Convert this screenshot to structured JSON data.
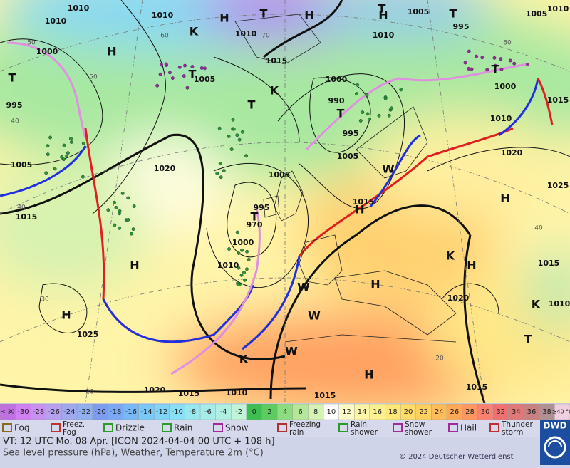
{
  "map": {
    "labels": [
      "1010",
      "1010",
      "1010",
      "1000",
      "995",
      "1005",
      "1015",
      "1020",
      "H",
      "T",
      "H",
      "H",
      "1025",
      "1020",
      "1015",
      "1010",
      "1015",
      "1015",
      "H",
      "T",
      "1010",
      "K",
      "1015",
      "H",
      "K",
      "1020",
      "W",
      "W",
      "W",
      "K",
      "H",
      "1025",
      "H",
      "1020",
      "1010",
      "1000",
      "T",
      "1015",
      "1005",
      "995",
      "T",
      "1005",
      "1010",
      "T",
      "H",
      "1010",
      "H",
      "H",
      "T",
      "K",
      "1010",
      "1015",
      "T",
      "1005",
      "K",
      "T",
      "1000",
      "990",
      "T",
      "995",
      "1005",
      "H",
      "1015",
      "1005",
      "995",
      "T",
      "970",
      "1000",
      "1010",
      "W",
      "50",
      "60",
      "70",
      "50",
      "40",
      "40",
      "30",
      "20",
      "20",
      "40",
      "60"
    ]
  },
  "scale": {
    "labels": [
      "<-30",
      "-30",
      "-28",
      "-26",
      "-24",
      "-22",
      "-20",
      "-18",
      "-16",
      "-14",
      "-12",
      "-10",
      "-8",
      "-6",
      "-4",
      "-2",
      "0",
      "2",
      "4",
      "6",
      "8",
      "10",
      "12",
      "14",
      "16",
      "18",
      "20",
      "22",
      "24",
      "26",
      "28",
      "30",
      "32",
      "34",
      "36",
      "38",
      "≥40 °C"
    ],
    "colors": [
      "#c070e0",
      "#d080f0",
      "#c890f0",
      "#b8a0f0",
      "#a0a8f0",
      "#90b0f0",
      "#7c9cf0",
      "#7aa8f4",
      "#78b8f6",
      "#78c8f8",
      "#80d4f8",
      "#88e0f6",
      "#98e8f0",
      "#a8ecea",
      "#b0f0e0",
      "#c0f4d8",
      "#3cbf50",
      "#5ccc60",
      "#8edc80",
      "#b4e898",
      "#d4f2b4",
      "#ffffff",
      "#fffcc8",
      "#fff6a8",
      "#fff090",
      "#ffe878",
      "#ffdc68",
      "#ffd060",
      "#ffbc58",
      "#ffa858",
      "#ff9860",
      "#ff8070",
      "#f07070",
      "#e07878",
      "#c88080",
      "#b09090",
      "#f0d0e0"
    ]
  },
  "legend": [
    "Fog",
    "Freez. Fog",
    "Drizzle",
    "Rain",
    "Snow",
    "Freezing rain",
    "Rain shower",
    "Snow shower",
    "Hail",
    "Thunder storm"
  ],
  "footer": {
    "valid": "VT: 12 UTC Mo.  08 Apr. [ICON 2024-04-04  00 UTC + 108 h]",
    "caption": "Sea level pressure (hPa), Weather, Temperature 2m (°C)",
    "copyright": "© 2024 Deutscher Wetterdienst",
    "logo": "DWD"
  }
}
